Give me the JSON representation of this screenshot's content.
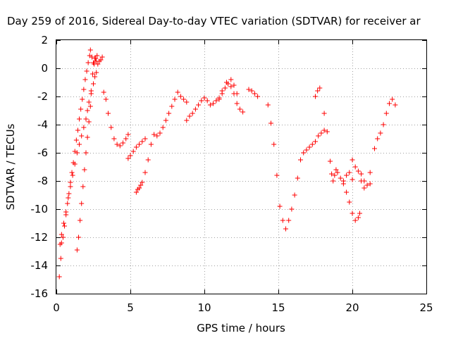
{
  "chart_data": {
    "type": "scatter",
    "title": "Day 259 of 2016, Sidereal Day-to-day VTEC variation (SDTVAR) for receiver ar",
    "xlabel": "GPS time / hours",
    "ylabel": "SDTVAR / TECUs",
    "xlim": [
      0,
      25
    ],
    "ylim": [
      -16,
      2
    ],
    "xticks": [
      "0",
      "5",
      "10",
      "15",
      "20",
      "25"
    ],
    "yticks": [
      "2",
      "0",
      "-2",
      "-4",
      "-6",
      "-8",
      "-10",
      "-12",
      "-14",
      "-16"
    ],
    "grid": true,
    "marker": "plus",
    "color": "#ff0000",
    "series": [
      {
        "x": [
          0.2,
          0.3,
          0.35,
          0.45,
          0.55,
          0.65,
          0.75,
          0.85,
          0.95,
          1.05,
          1.15,
          1.25,
          1.35,
          1.45,
          1.55,
          1.65,
          1.75,
          1.85,
          1.95,
          2.05,
          2.15,
          2.25,
          2.3,
          2.4,
          2.5,
          2.6,
          2.7,
          2.8,
          2.9,
          3.0,
          3.1,
          0.25,
          0.35,
          0.5,
          0.65,
          0.8,
          0.95,
          1.1,
          1.25,
          1.4,
          1.55,
          1.7,
          1.85,
          2.0,
          2.1,
          2.2,
          2.35,
          2.5,
          2.6,
          2.7,
          1.4,
          1.5,
          1.6,
          1.7,
          1.8,
          1.9,
          2.0,
          2.1,
          2.2,
          2.3,
          2.35,
          2.45,
          2.55,
          2.65,
          2.75,
          3.2,
          3.35,
          3.5,
          3.7,
          3.9,
          4.1,
          4.3,
          4.5,
          4.7,
          4.85,
          4.85,
          5.0,
          5.2,
          5.4,
          5.6,
          5.8,
          6.0,
          5.4,
          5.5,
          5.6,
          5.7,
          5.8,
          6.0,
          6.2,
          6.4,
          6.6,
          6.8,
          7.0,
          7.2,
          7.4,
          7.6,
          7.8,
          8.0,
          8.2,
          8.4,
          8.6,
          8.8,
          8.8,
          9.0,
          9.2,
          9.4,
          9.6,
          9.8,
          10.0,
          10.2,
          10.4,
          10.6,
          10.8,
          11.0,
          11.2,
          11.4,
          11.6,
          11.8,
          12.0,
          12.2,
          12.4,
          12.6,
          11.0,
          11.2,
          11.5,
          11.8,
          12.0,
          12.2,
          13.0,
          13.2,
          13.4,
          13.6,
          14.3,
          14.5,
          14.7,
          14.9,
          15.1,
          15.3,
          15.5,
          15.7,
          15.9,
          16.1,
          16.3,
          16.5,
          16.7,
          16.9,
          17.1,
          17.3,
          17.5,
          17.7,
          17.9,
          18.1,
          17.5,
          17.65,
          17.8,
          18.1,
          18.3,
          18.5,
          18.6,
          18.7,
          18.8,
          18.9,
          19.0,
          19.2,
          19.4,
          19.6,
          19.8,
          20.0,
          20.2,
          20.4,
          20.5,
          19.4,
          19.6,
          19.8,
          20.0,
          20.0,
          20.2,
          20.4,
          20.6,
          20.8,
          21.0,
          21.2,
          20.6,
          20.8,
          21.0,
          21.2,
          21.5,
          21.7,
          21.9,
          22.1,
          22.3,
          22.5,
          22.7,
          22.9
        ],
        "y": [
          -14.8,
          -13.5,
          -12.4,
          -12.0,
          -11.2,
          -10.4,
          -9.6,
          -8.9,
          -8.1,
          -7.4,
          -6.7,
          -5.9,
          -5.1,
          -4.4,
          -3.6,
          -2.9,
          -2.2,
          -1.5,
          -0.8,
          -0.2,
          0.4,
          0.9,
          1.3,
          0.8,
          0.4,
          0.7,
          0.5,
          0.3,
          0.5,
          0.6,
          0.8,
          -12.5,
          -11.8,
          -11.0,
          -10.2,
          -9.2,
          -8.4,
          -7.6,
          -6.8,
          -6.0,
          -5.4,
          -4.8,
          -4.2,
          -3.6,
          -3.0,
          -2.4,
          -1.8,
          -1.1,
          -0.6,
          -0.3,
          -12.9,
          -12.0,
          -10.8,
          -9.6,
          -8.4,
          -7.2,
          -6.0,
          -4.9,
          -3.8,
          -2.7,
          -1.6,
          -0.4,
          0.3,
          0.7,
          0.9,
          -1.7,
          -2.2,
          -3.2,
          -4.2,
          -5.0,
          -5.4,
          -5.5,
          -5.3,
          -5.0,
          -4.7,
          -6.4,
          -6.2,
          -5.9,
          -5.6,
          -5.4,
          -5.2,
          -5.0,
          -8.8,
          -8.6,
          -8.5,
          -8.3,
          -8.1,
          -7.4,
          -6.5,
          -5.4,
          -4.7,
          -4.8,
          -4.6,
          -4.2,
          -3.7,
          -3.2,
          -2.7,
          -2.2,
          -1.7,
          -2.0,
          -2.2,
          -2.4,
          -3.7,
          -3.4,
          -3.2,
          -2.9,
          -2.6,
          -2.3,
          -2.1,
          -2.3,
          -2.6,
          -2.5,
          -2.3,
          -2.2,
          -1.8,
          -1.4,
          -1.1,
          -1.3,
          -1.8,
          -2.5,
          -2.9,
          -3.1,
          -2.1,
          -1.6,
          -1.0,
          -0.8,
          -1.2,
          -1.8,
          -1.5,
          -1.6,
          -1.8,
          -2.0,
          -2.6,
          -3.9,
          -5.4,
          -7.6,
          -9.8,
          -10.8,
          -11.4,
          -10.8,
          -10.0,
          -9.0,
          -7.8,
          -6.5,
          -6.0,
          -5.8,
          -5.6,
          -5.4,
          -5.2,
          -4.8,
          -4.6,
          -4.4,
          -2.0,
          -1.6,
          -1.4,
          -3.2,
          -4.5,
          -6.6,
          -7.5,
          -8.0,
          -7.6,
          -7.2,
          -7.4,
          -7.8,
          -8.2,
          -8.8,
          -9.5,
          -10.3,
          -10.8,
          -10.6,
          -10.3,
          -8.0,
          -7.6,
          -7.4,
          -7.9,
          -6.5,
          -7.0,
          -7.3,
          -7.5,
          -8.0,
          -8.3,
          -8.2,
          -8.0,
          -8.5,
          -8.3,
          -7.4,
          -5.7,
          -5.0,
          -4.6,
          -4.0,
          -3.2,
          -2.5,
          -2.2,
          -2.6
        ]
      }
    ]
  }
}
